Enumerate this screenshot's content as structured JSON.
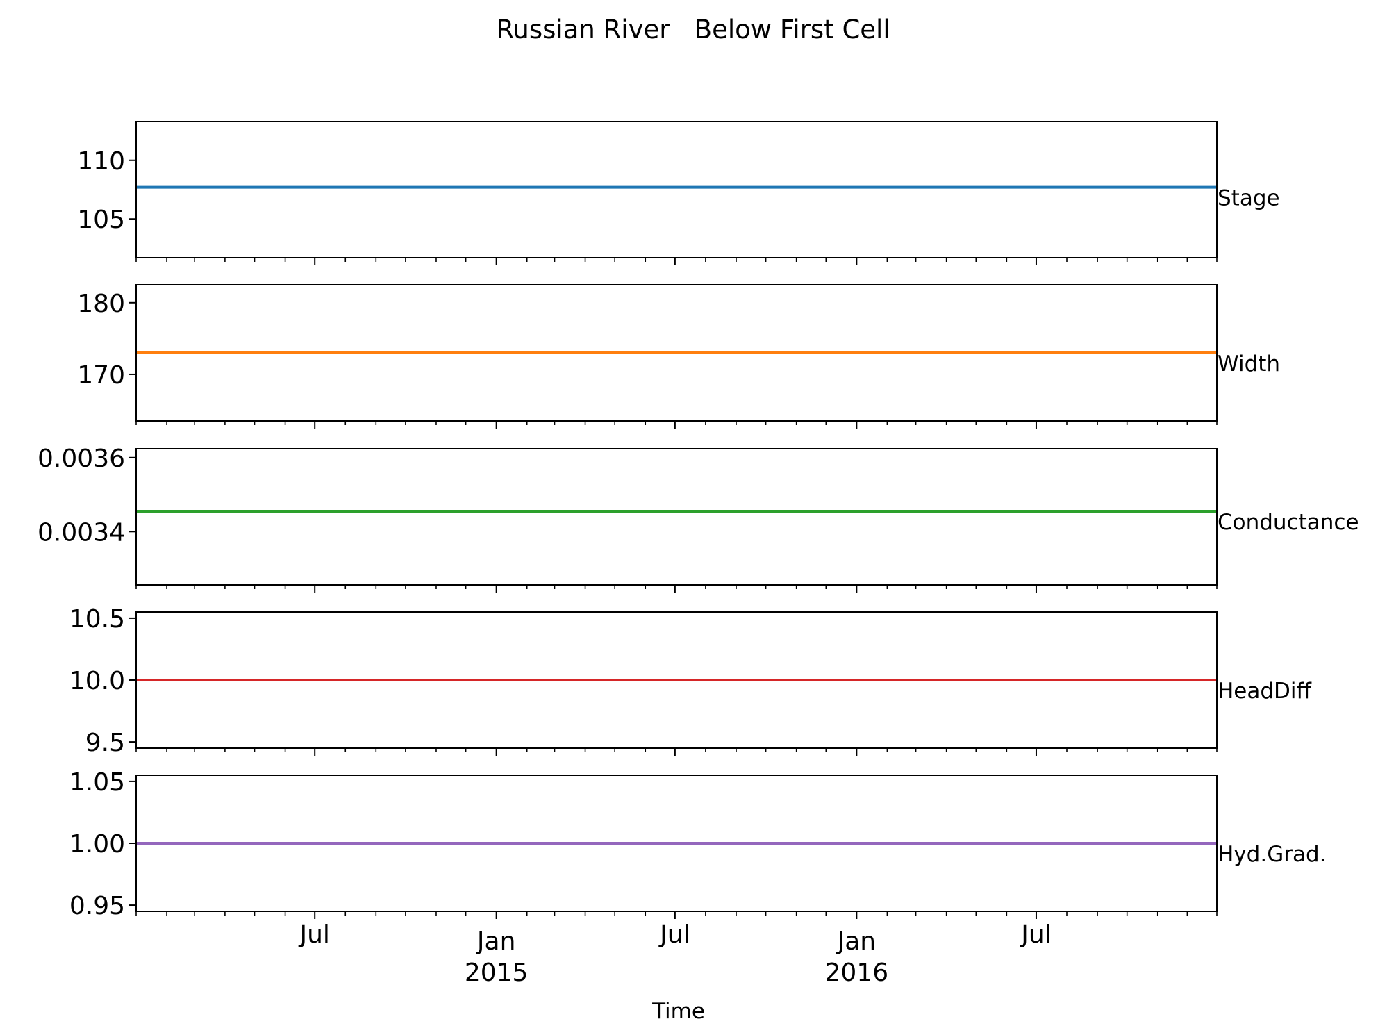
{
  "chart_data": {
    "type": "line",
    "title": "Russian River   Below First Cell",
    "xlabel": "Time",
    "x_range": [
      "2014-01-01",
      "2016-12-31"
    ],
    "x_ticks_major": [
      {
        "date": "2014-07-01",
        "label": "Jul",
        "year": ""
      },
      {
        "date": "2015-01-01",
        "label": "Jan",
        "year": "2015"
      },
      {
        "date": "2015-07-01",
        "label": "Jul",
        "year": ""
      },
      {
        "date": "2016-01-01",
        "label": "Jan",
        "year": "2016"
      },
      {
        "date": "2016-07-01",
        "label": "Jul",
        "year": ""
      }
    ],
    "x_ticks_minor": "monthly",
    "grid": false,
    "panels": [
      {
        "name": "Stage",
        "color": "#1f77b4",
        "ylim": [
          101.7,
          113.3
        ],
        "ticks": [
          105,
          110
        ],
        "tick_labels": [
          "105",
          "110"
        ],
        "x": [
          "2014-01-01",
          "2016-12-31"
        ],
        "values": [
          107.7,
          107.7
        ]
      },
      {
        "name": "Width",
        "color": "#ff7f0e",
        "ylim": [
          163.5,
          182.5
        ],
        "ticks": [
          170,
          180
        ],
        "tick_labels": [
          "170",
          "180"
        ],
        "x": [
          "2014-01-01",
          "2016-12-31"
        ],
        "values": [
          173,
          173
        ]
      },
      {
        "name": "Conductance",
        "color": "#2ca02c",
        "ylim": [
          0.003256,
          0.003624
        ],
        "ticks": [
          0.0034,
          0.0036
        ],
        "tick_labels": [
          "0.0034",
          "0.0036"
        ],
        "x": [
          "2014-01-01",
          "2016-12-31"
        ],
        "values": [
          0.003455,
          0.003455
        ]
      },
      {
        "name": "HeadDiff",
        "color": "#d62728",
        "ylim": [
          9.45,
          10.55
        ],
        "ticks": [
          9.5,
          10.0,
          10.5
        ],
        "tick_labels": [
          "9.5",
          "10.0",
          "10.5"
        ],
        "x": [
          "2014-01-01",
          "2016-12-31"
        ],
        "values": [
          10.0,
          10.0
        ]
      },
      {
        "name": "Hyd.Grad.",
        "color": "#9467bd",
        "ylim": [
          0.945,
          1.055
        ],
        "ticks": [
          0.95,
          1.0,
          1.05
        ],
        "tick_labels": [
          "0.95",
          "1.00",
          "1.05"
        ],
        "x": [
          "2014-01-01",
          "2016-12-31"
        ],
        "values": [
          1.0,
          1.0
        ]
      }
    ]
  }
}
